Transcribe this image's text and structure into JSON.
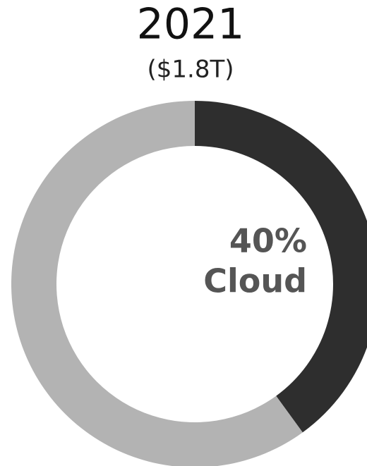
{
  "chart_data": {
    "type": "donut",
    "title": "2021",
    "subtitle": "($1.8T)",
    "categories": [
      "Cloud",
      null
    ],
    "values": [
      40,
      60
    ],
    "value_labels": [
      "40%",
      null
    ],
    "colors": [
      "#2e2e2e",
      "#b3b3b3"
    ]
  }
}
